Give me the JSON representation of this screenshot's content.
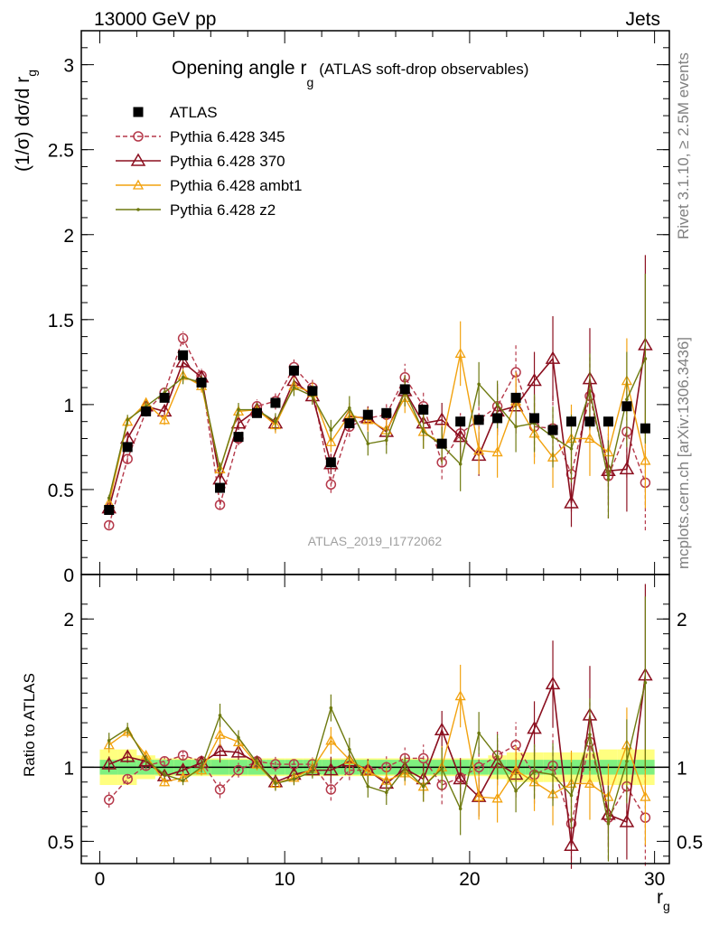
{
  "header": {
    "left": "13000 GeV pp",
    "right": "Jets"
  },
  "side_labels": {
    "rivet": "Rivet 3.1.10, ≥ 2.5M events",
    "mcplots": "mcplots.cern.ch [arXiv:1306.3436]"
  },
  "colors": {
    "atlas": "#000000",
    "p345": "#b5394a",
    "p370": "#8b0f1f",
    "ambt1": "#f2a20f",
    "z2": "#6e7a10",
    "band_inner": "#7ff07f",
    "band_outer": "#ffff80"
  },
  "chart_data": [
    {
      "type": "scatter",
      "title": "Opening angle r",
      "title_subscript": "g",
      "title_suffix": "(ATLAS soft-drop observables)",
      "ylabel": "(1/σ) dσ/d r",
      "ylabel_subscript": "g",
      "watermark": "ATLAS_2019_I1772062",
      "xlim": [
        -1,
        30.8
      ],
      "ylim": [
        0,
        3.2
      ],
      "yticks": [
        "0",
        "0.5",
        "1",
        "1.5",
        "2",
        "2.5",
        "3"
      ],
      "legend_position": "top-left",
      "x": [
        0.5,
        1.5,
        2.5,
        3.5,
        4.5,
        5.5,
        6.5,
        7.5,
        8.5,
        9.5,
        10.5,
        11.5,
        12.5,
        13.5,
        14.5,
        15.5,
        16.5,
        17.5,
        18.5,
        19.5,
        20.5,
        21.5,
        22.5,
        23.5,
        24.5,
        25.5,
        26.5,
        27.5,
        28.5,
        29.5
      ],
      "series": [
        {
          "name": "ATLAS",
          "key": "atlas",
          "values": [
            0.38,
            0.75,
            0.96,
            1.04,
            1.29,
            1.13,
            0.51,
            0.81,
            0.95,
            1.01,
            1.2,
            1.08,
            0.66,
            0.89,
            0.94,
            0.95,
            1.09,
            0.97,
            0.77,
            0.9,
            0.91,
            0.92,
            1.04,
            0.92,
            0.85,
            0.9,
            0.9,
            0.9,
            0.99,
            0.86
          ],
          "errors": [
            0.01,
            0.01,
            0.01,
            0.01,
            0.01,
            0.01,
            0.01,
            0.01,
            0.01,
            0.01,
            0.01,
            0.01,
            0.01,
            0.01,
            0.01,
            0.01,
            0.01,
            0.01,
            0.01,
            0.01,
            0.01,
            0.01,
            0.01,
            0.01,
            0.01,
            0.01,
            0.01,
            0.01,
            0.01,
            0.01
          ]
        },
        {
          "name": "Pythia 6.428 345",
          "key": "p345",
          "values": [
            0.29,
            0.68,
            0.96,
            1.07,
            1.39,
            1.17,
            0.41,
            0.8,
            0.99,
            1.02,
            1.22,
            1.1,
            0.53,
            0.87,
            0.92,
            0.94,
            1.16,
            0.99,
            0.66,
            0.83,
            0.91,
            0.99,
            1.19,
            0.87,
            0.86,
            0.59,
            1.05,
            0.58,
            0.84,
            0.54
          ],
          "errors": [
            0.02,
            0.03,
            0.03,
            0.03,
            0.04,
            0.04,
            0.03,
            0.04,
            0.04,
            0.05,
            0.05,
            0.05,
            0.05,
            0.06,
            0.07,
            0.07,
            0.08,
            0.09,
            0.1,
            0.12,
            0.13,
            0.15,
            0.16,
            0.18,
            0.2,
            0.22,
            0.24,
            0.25,
            0.27,
            0.28
          ]
        },
        {
          "name": "Pythia 6.428 370",
          "key": "p370",
          "values": [
            0.39,
            0.8,
            0.99,
            0.96,
            1.25,
            1.16,
            0.56,
            0.89,
            0.97,
            0.89,
            1.14,
            1.05,
            0.65,
            0.93,
            0.92,
            0.84,
            1.08,
            0.89,
            0.91,
            0.81,
            0.7,
            0.96,
            0.99,
            1.14,
            1.27,
            0.42,
            1.15,
            0.61,
            0.62,
            1.35
          ],
          "errors": [
            0.02,
            0.03,
            0.03,
            0.03,
            0.04,
            0.04,
            0.04,
            0.04,
            0.04,
            0.05,
            0.05,
            0.05,
            0.06,
            0.06,
            0.07,
            0.08,
            0.09,
            0.1,
            0.1,
            0.12,
            0.12,
            0.14,
            0.16,
            0.17,
            0.25,
            0.14,
            0.3,
            0.2,
            0.25,
            0.53
          ]
        },
        {
          "name": "Pythia 6.428 ambt1",
          "key": "ambt1",
          "values": [
            0.42,
            0.9,
            1.01,
            0.91,
            1.17,
            1.11,
            0.62,
            0.96,
            0.97,
            0.88,
            1.11,
            1.07,
            0.78,
            0.94,
            0.91,
            0.85,
            1.04,
            0.84,
            0.77,
            1.3,
            0.73,
            0.72,
            1.02,
            0.83,
            0.69,
            0.8,
            0.8,
            0.72,
            1.14,
            0.67
          ],
          "errors": [
            0.02,
            0.03,
            0.03,
            0.03,
            0.04,
            0.04,
            0.04,
            0.04,
            0.04,
            0.05,
            0.05,
            0.06,
            0.06,
            0.07,
            0.07,
            0.08,
            0.09,
            0.1,
            0.11,
            0.19,
            0.14,
            0.15,
            0.17,
            0.18,
            0.18,
            0.2,
            0.22,
            0.2,
            0.25,
            0.28
          ]
        },
        {
          "name": "Pythia 6.428 z2",
          "key": "z2",
          "values": [
            0.45,
            0.91,
            0.99,
            1.07,
            1.16,
            1.13,
            0.62,
            0.97,
            0.97,
            0.9,
            1.1,
            1.05,
            0.85,
            0.98,
            0.77,
            0.79,
            1.08,
            0.84,
            0.76,
            0.65,
            1.12,
            1.0,
            0.87,
            0.89,
            0.81,
            0.74,
            1.08,
            0.56,
            1.03,
            1.27
          ],
          "errors": [
            0.02,
            0.03,
            0.03,
            0.03,
            0.04,
            0.04,
            0.04,
            0.04,
            0.04,
            0.05,
            0.05,
            0.05,
            0.06,
            0.07,
            0.07,
            0.08,
            0.09,
            0.1,
            0.11,
            0.16,
            0.13,
            0.14,
            0.15,
            0.17,
            0.18,
            0.2,
            0.22,
            0.23,
            0.28,
            0.5
          ]
        }
      ]
    },
    {
      "type": "scatter",
      "ylabel": "Ratio to ATLAS",
      "xlabel": "r",
      "xlabel_subscript": "g",
      "xlim": [
        -1,
        30.8
      ],
      "ylim": [
        0.35,
        2.3
      ],
      "xticks": [
        "0",
        "10",
        "20",
        "30"
      ],
      "yticks": [
        "0.5",
        "1",
        "2"
      ],
      "reference_line": 1,
      "band_inner": [
        0.05,
        0.05,
        0.05,
        0.05,
        0.05,
        0.05,
        0.05,
        0.05,
        0.05,
        0.05,
        0.05,
        0.05,
        0.05,
        0.05,
        0.05,
        0.05,
        0.05,
        0.05,
        0.05,
        0.05,
        0.05,
        0.05,
        0.05,
        0.05,
        0.05,
        0.05,
        0.05,
        0.05,
        0.05,
        0.05
      ],
      "band_outer": [
        0.12,
        0.12,
        0.08,
        0.06,
        0.06,
        0.06,
        0.06,
        0.06,
        0.06,
        0.06,
        0.06,
        0.06,
        0.06,
        0.06,
        0.06,
        0.06,
        0.06,
        0.06,
        0.06,
        0.06,
        0.06,
        0.08,
        0.1,
        0.1,
        0.1,
        0.1,
        0.1,
        0.12,
        0.12,
        0.12
      ],
      "series": [
        {
          "key": "p345",
          "values": [
            0.78,
            0.92,
            1.01,
            1.04,
            1.08,
            1.04,
            0.85,
            0.98,
            1.04,
            1.02,
            1.02,
            1.02,
            0.85,
            0.98,
            0.98,
            1.0,
            1.06,
            1.06,
            0.88,
            0.93,
            1.0,
            1.08,
            1.15,
            0.95,
            1.01,
            0.62,
            1.17,
            0.66,
            0.87,
            0.66
          ]
        },
        {
          "key": "p370",
          "values": [
            1.02,
            1.07,
            1.04,
            0.94,
            0.98,
            1.03,
            1.11,
            1.1,
            1.03,
            0.9,
            0.95,
            0.98,
            0.98,
            1.04,
            0.98,
            0.89,
            0.99,
            0.92,
            1.25,
            0.92,
            0.8,
            1.03,
            0.95,
            1.26,
            1.56,
            0.47,
            1.35,
            0.68,
            0.63,
            1.62
          ]
        },
        {
          "key": "ambt1",
          "values": [
            1.15,
            1.24,
            1.08,
            0.9,
            0.93,
            0.98,
            1.22,
            1.17,
            1.02,
            0.89,
            0.93,
            0.99,
            1.18,
            1.05,
            0.97,
            0.91,
            0.96,
            0.87,
            1.0,
            1.48,
            0.8,
            0.79,
            0.98,
            0.9,
            0.82,
            0.89,
            0.89,
            0.8,
            1.15,
            0.8
          ]
        },
        {
          "key": "z2",
          "values": [
            1.18,
            1.26,
            1.05,
            0.95,
            0.91,
            1.0,
            1.35,
            1.2,
            1.03,
            0.89,
            0.92,
            0.97,
            1.4,
            1.12,
            0.87,
            0.83,
            0.99,
            0.87,
            0.99,
            0.72,
            1.23,
            1.07,
            0.84,
            0.97,
            0.95,
            0.81,
            1.22,
            0.62,
            1.04,
            1.57
          ]
        }
      ]
    }
  ]
}
